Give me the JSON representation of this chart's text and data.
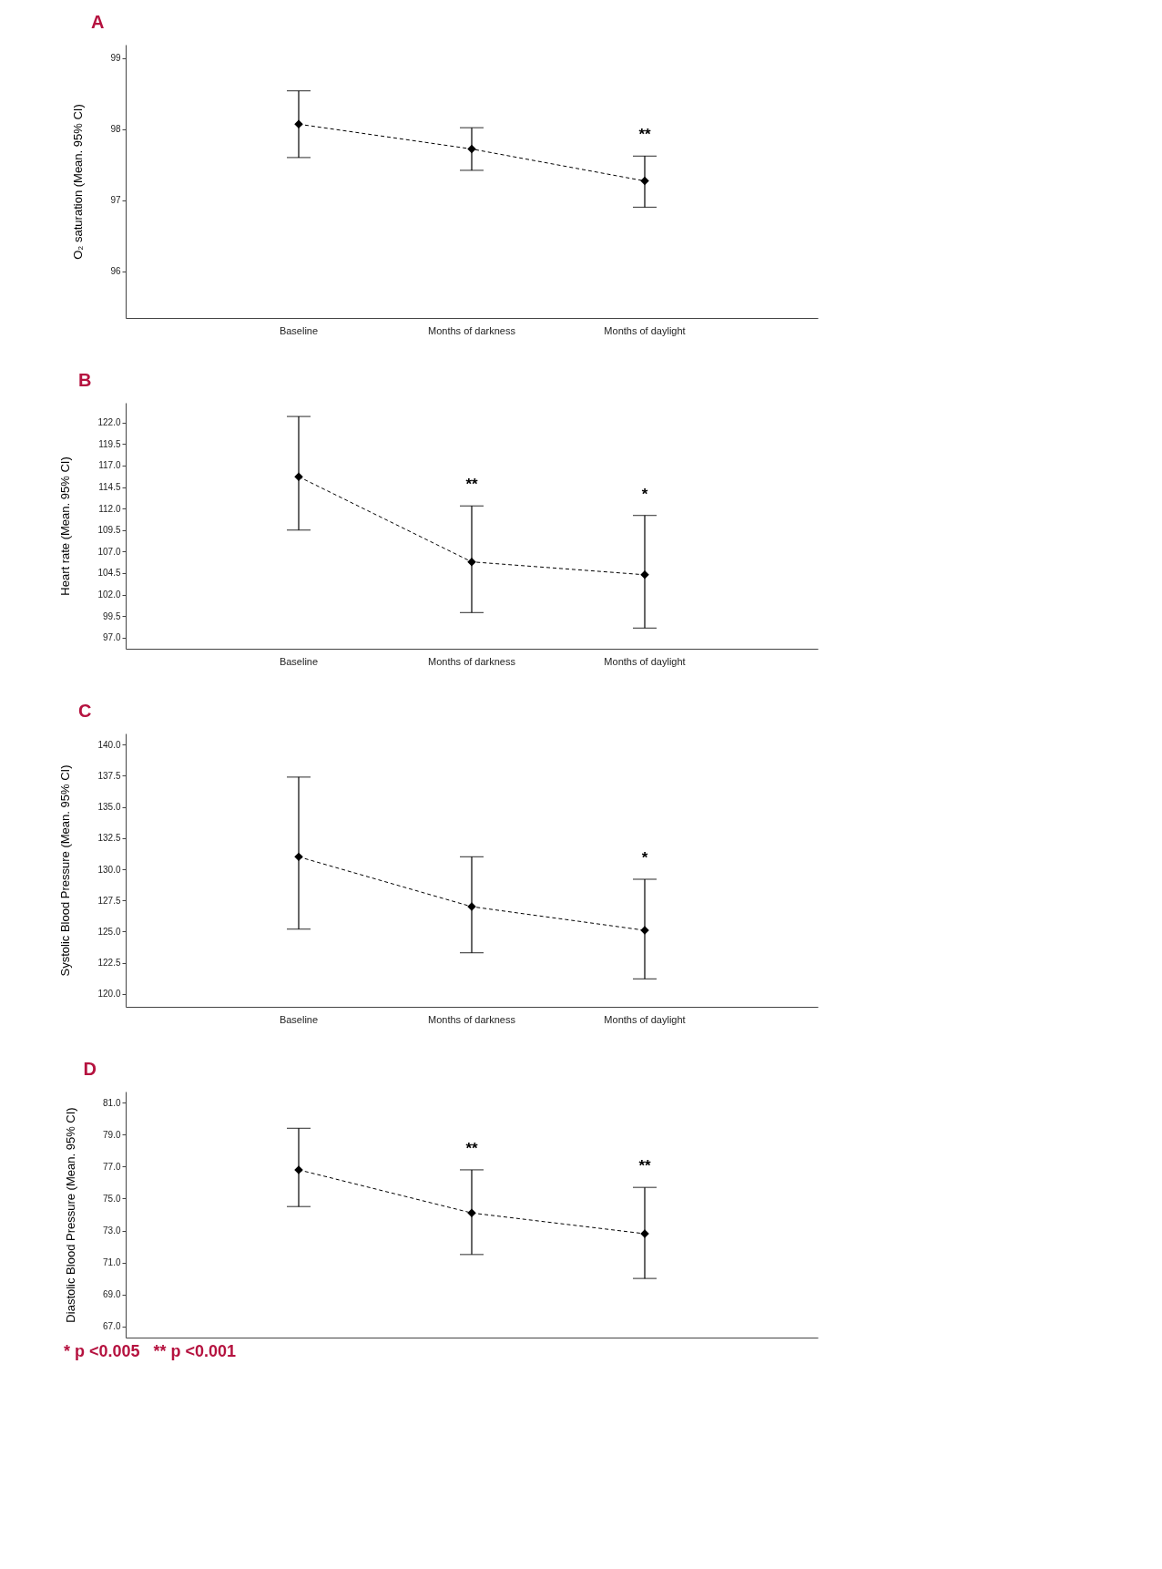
{
  "chart_data": [
    {
      "type": "line",
      "title": "A",
      "ylabel": "O₂ saturation (Mean. 95% CI)",
      "categories": [
        "Baseline",
        "Months of darkness",
        "Months of daylight"
      ],
      "values": [
        98.07,
        97.72,
        97.27
      ],
      "errors": [
        [
          97.6,
          98.54
        ],
        [
          97.42,
          98.02
        ],
        [
          96.9,
          97.62
        ]
      ],
      "color": "#000000",
      "marker": "diamond",
      "line_style": "dashed",
      "ylim": [
        95.34,
        99.19
      ],
      "yticks": [
        96,
        97,
        98,
        99
      ],
      "annotations": [
        {
          "text": "**",
          "x": "Months of daylight",
          "y": 97.62
        }
      ]
    },
    {
      "type": "line",
      "title": "B",
      "ylabel": "Heart rate (Mean. 95% CI)",
      "categories": [
        "Baseline",
        "Months of darkness",
        "Months of daylight"
      ],
      "values": [
        115.7,
        105.8,
        104.3
      ],
      "errors": [
        [
          109.5,
          122.7
        ],
        [
          99.9,
          112.3
        ],
        [
          98.1,
          111.2
        ]
      ],
      "color": "#000000",
      "marker": "diamond",
      "line_style": "dashed",
      "ylim": [
        95.7,
        124.3
      ],
      "yticks": [
        {
          "value": 97,
          "label": "97.0"
        },
        99.5,
        {
          "value": 102,
          "label": "102.0"
        },
        104.5,
        {
          "value": 107,
          "label": "107.0"
        },
        109.5,
        {
          "value": 112,
          "label": "112.0"
        },
        114.5,
        {
          "value": 117,
          "label": "117.0"
        },
        119.5,
        {
          "value": 122,
          "label": "122.0"
        }
      ],
      "annotations": [
        {
          "text": "**",
          "x": "Months of darkness",
          "y": 112.3
        },
        {
          "text": "*",
          "x": "Months of daylight",
          "y": 111.2
        }
      ]
    },
    {
      "type": "line",
      "title": "C",
      "ylabel": "Systolic Blood Pressure (Mean. 95% CI)",
      "categories": [
        "Baseline",
        "Months of darkness",
        "Months of daylight"
      ],
      "values": [
        131.0,
        127.0,
        125.1
      ],
      "errors": [
        [
          125.2,
          137.4
        ],
        [
          123.3,
          131.0
        ],
        [
          121.2,
          129.2
        ]
      ],
      "color": "#000000",
      "marker": "diamond",
      "line_style": "dashed",
      "ylim": [
        118.96,
        140.9
      ],
      "yticks": [
        {
          "value": 120,
          "label": "120.0"
        },
        122.5,
        {
          "value": 125,
          "label": "125.0"
        },
        127.5,
        {
          "value": 130,
          "label": "130.0"
        },
        132.5,
        {
          "value": 135,
          "label": "135.0"
        },
        137.5,
        {
          "value": 140,
          "label": "140.0"
        }
      ],
      "annotations": [
        {
          "text": "*",
          "x": "Months of daylight",
          "y": 129.2
        }
      ]
    },
    {
      "type": "line",
      "title": "D",
      "ylabel": "Diastolic Blood Pressure (Mean. 95% CI)",
      "categories": [
        "Baseline",
        "Months of darkness",
        "Months of daylight"
      ],
      "values": [
        76.8,
        74.1,
        72.8
      ],
      "errors": [
        [
          74.5,
          79.4
        ],
        [
          71.5,
          76.8
        ],
        [
          70.0,
          75.7
        ]
      ],
      "color": "#000000",
      "marker": "diamond",
      "line_style": "dashed",
      "ylim": [
        66.3,
        81.7
      ],
      "yticks": [
        {
          "value": 67,
          "label": "67.0"
        },
        {
          "value": 69,
          "label": "69.0"
        },
        {
          "value": 71,
          "label": "71.0"
        },
        {
          "value": 73,
          "label": "73.0"
        },
        {
          "value": 75,
          "label": "75.0"
        },
        {
          "value": 77,
          "label": "77.0"
        },
        {
          "value": 79,
          "label": "79.0"
        },
        {
          "value": 81,
          "label": "81.0"
        }
      ],
      "tick_labels": "y",
      "annotations": [
        {
          "text": "**",
          "x": "Months of darkness",
          "y": 76.8
        },
        {
          "text": "**",
          "x": "Months of daylight",
          "y": 75.7
        },
        "* p <0.005   ** p <0.001"
      ]
    }
  ]
}
